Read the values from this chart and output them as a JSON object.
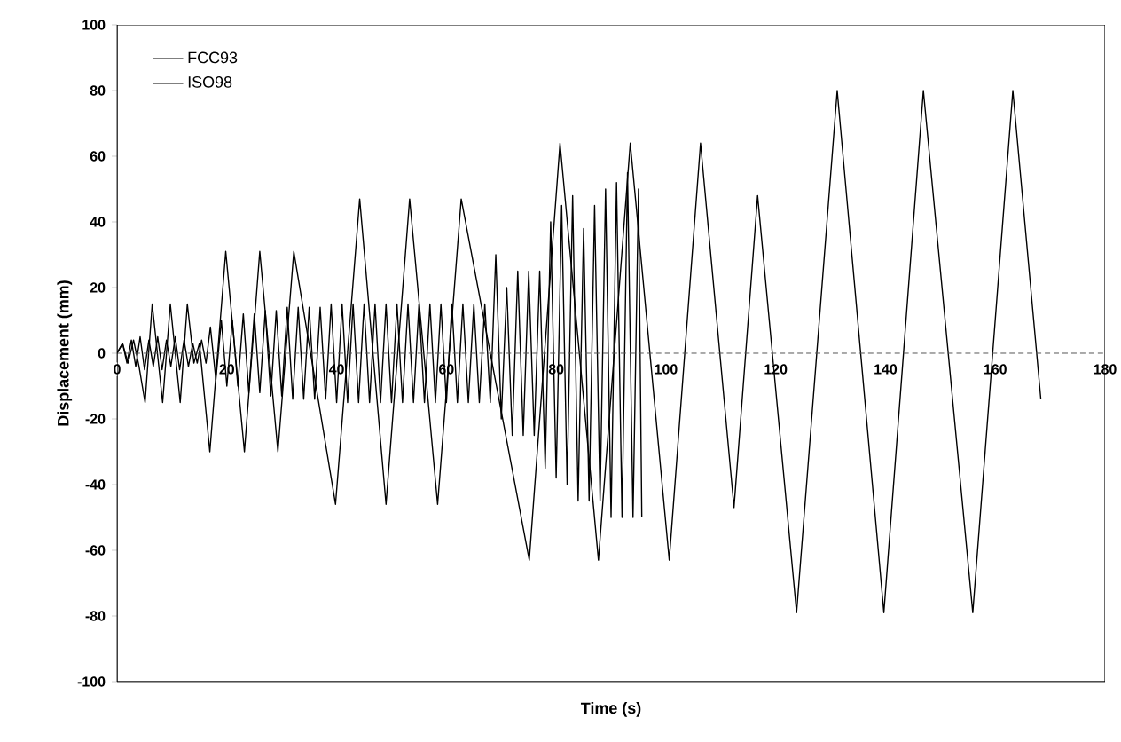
{
  "chart_data": {
    "type": "line",
    "xlabel": "Time (s)",
    "ylabel": "Displacement (mm)",
    "xlim": [
      0,
      180
    ],
    "xticks": [
      0,
      20,
      40,
      60,
      80,
      100,
      120,
      140,
      160,
      180
    ],
    "ylim": [
      -100,
      100
    ],
    "yticks": [
      -100,
      -80,
      -60,
      -40,
      -20,
      0,
      20,
      40,
      60,
      80,
      100
    ],
    "legend": "top left",
    "grid": false,
    "ref_lines": [
      {
        "axis": "y",
        "value": 0,
        "color": "#555555",
        "line_style": "dashed"
      }
    ],
    "marker": "none",
    "line_style": "solid",
    "series": [
      {
        "name": "FCC93",
        "color": "#000000",
        "x": [
          0,
          1,
          2,
          3,
          4,
          5.1,
          6.4,
          8.3,
          9.7,
          11.5,
          12.8,
          14,
          15,
          16.9,
          19.8,
          23.2,
          26.0,
          29.3,
          32.2,
          39.8,
          44.2,
          49.0,
          53.3,
          58.4,
          62.7,
          75.1,
          80.7,
          87.7,
          93.5,
          100.6,
          106.3,
          112.4,
          116.7,
          123.8,
          131.2,
          139.7,
          146.9,
          155.9,
          163.2,
          168.3
        ],
        "values": [
          0,
          3,
          -3,
          4,
          -4,
          -15,
          15,
          -15,
          15,
          -15,
          15,
          -3,
          3,
          -30,
          31,
          -30,
          31,
          -30,
          31,
          -46,
          47,
          -46,
          47,
          -46,
          47,
          -63,
          64,
          -63,
          64,
          -63,
          64,
          -47,
          48,
          -79,
          80,
          -79,
          80,
          -79,
          80,
          -14
        ]
      },
      {
        "name": "ISO98",
        "color": "#000000",
        "x": [
          0,
          1,
          1.8,
          2.6,
          3.4,
          4.2,
          5,
          5.8,
          6.6,
          7.4,
          8.2,
          9,
          9.8,
          10.6,
          11.4,
          12.2,
          13,
          13.8,
          14.6,
          15.4,
          16.2,
          17,
          18,
          19,
          20,
          21,
          22,
          23,
          24,
          25,
          26,
          27,
          28,
          29,
          30,
          31,
          32,
          33,
          34,
          35,
          36,
          37,
          38,
          39,
          40,
          41,
          42,
          43,
          44,
          45,
          46,
          47,
          48,
          49,
          50,
          51,
          52,
          53,
          54,
          55,
          56,
          57,
          58,
          59,
          60,
          61,
          62,
          63,
          64,
          65,
          66,
          67,
          68,
          69,
          70,
          71,
          72,
          73,
          74,
          75,
          76,
          77,
          78,
          79,
          80,
          81,
          82,
          83,
          84,
          85,
          86,
          87,
          88,
          89,
          90,
          91,
          92,
          93,
          94,
          95,
          95.6
        ],
        "values": [
          0,
          3,
          -3,
          4,
          -4,
          5,
          -5,
          4,
          -4,
          5,
          -5,
          4,
          -4,
          5,
          -5,
          4,
          -4,
          3,
          -3,
          4,
          -3,
          8,
          -8,
          10,
          -10,
          10,
          -10,
          12,
          -12,
          12,
          -12,
          13,
          -13,
          13,
          -13,
          14,
          -14,
          14,
          -14,
          14,
          -14,
          14,
          -14,
          15,
          -15,
          15,
          -15,
          15,
          -15,
          15,
          -15,
          15,
          -15,
          15,
          -15,
          15,
          -15,
          15,
          -15,
          15,
          -15,
          15,
          -15,
          15,
          -15,
          15,
          -15,
          15,
          -15,
          15,
          -15,
          15,
          -15,
          30,
          -20,
          20,
          -25,
          25,
          -25,
          25,
          -25,
          25,
          -35,
          40,
          -38,
          45,
          -40,
          48,
          -45,
          38,
          -45,
          45,
          -45,
          50,
          -50,
          52,
          -50,
          55,
          -50,
          50,
          -50
        ]
      }
    ]
  }
}
